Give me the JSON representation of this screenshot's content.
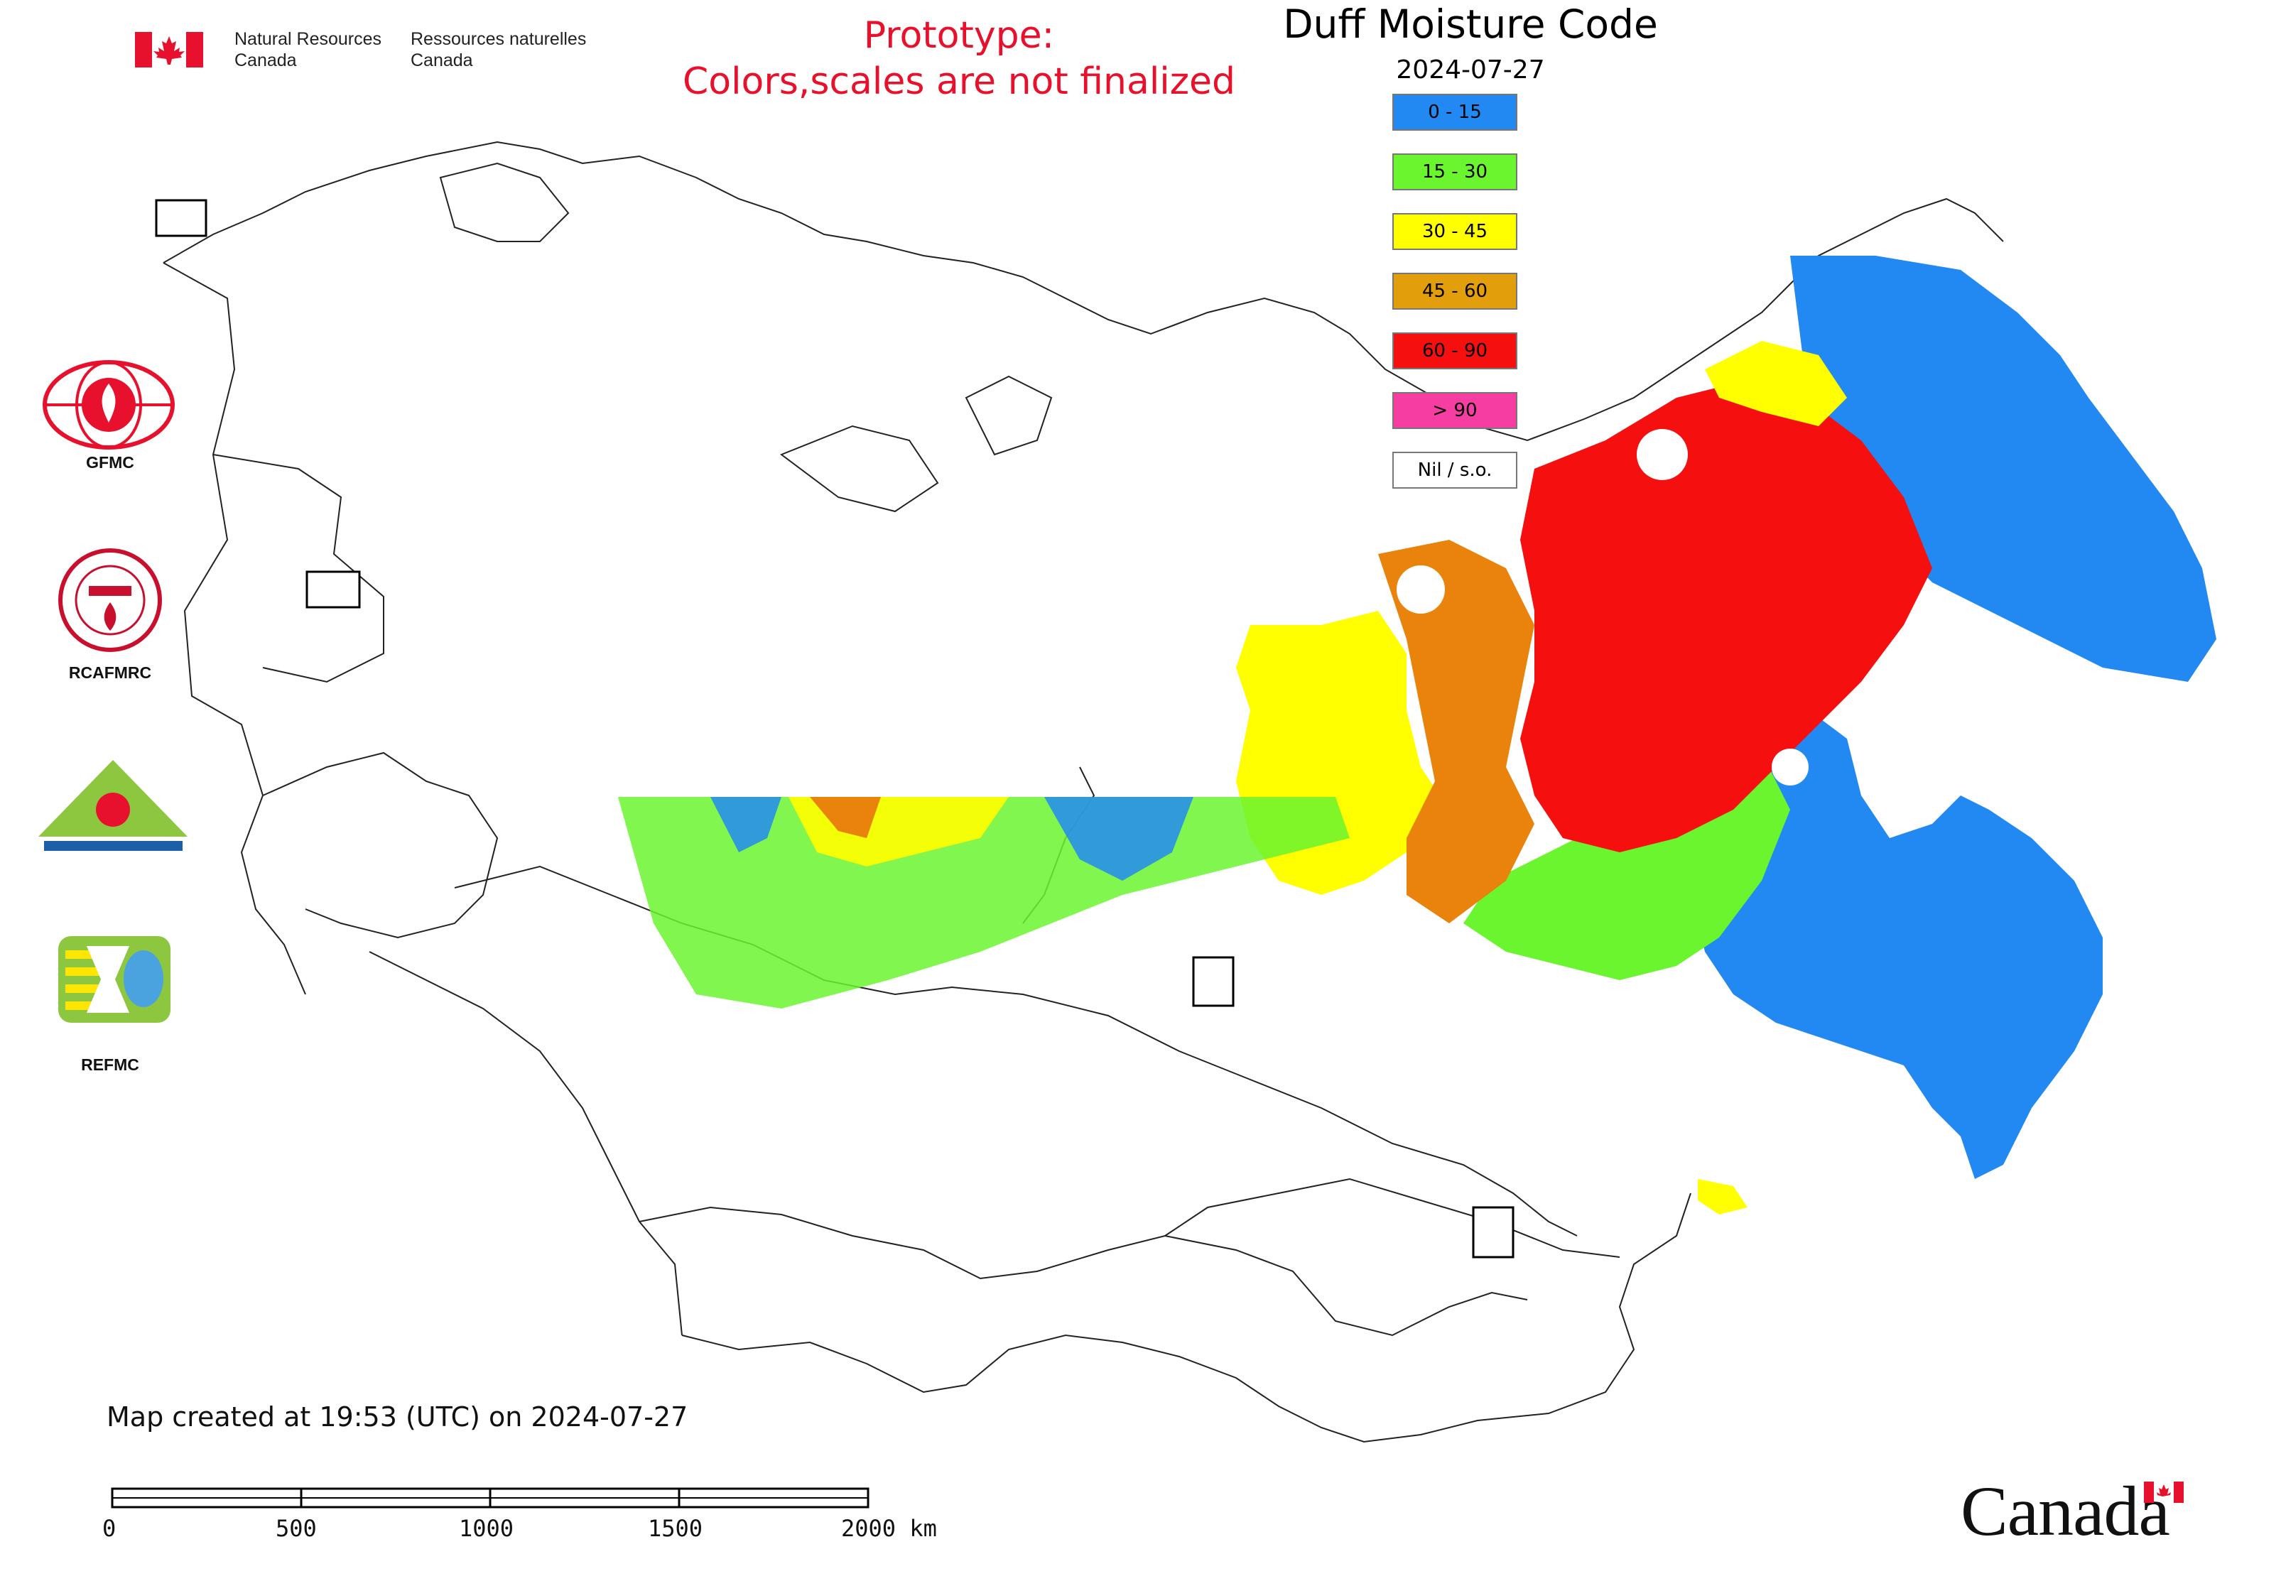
{
  "header": {
    "dept_en_line1": "Natural Resources",
    "dept_en_line2": "Canada",
    "dept_fr_line1": "Ressources naturelles",
    "dept_fr_line2": "Canada",
    "prototype_line1": "Prototype:",
    "prototype_line2": "Colors,scales are not finalized"
  },
  "map": {
    "title": "Duff Moisture Code",
    "date": "2024-07-27",
    "created_note": "Map created at 19:53 (UTC) on 2024-07-27"
  },
  "legend": [
    {
      "label": "0 - 15",
      "color": "#2389f2"
    },
    {
      "label": "15 - 30",
      "color": "#6af52f"
    },
    {
      "label": "30 - 45",
      "color": "#ffff00"
    },
    {
      "label": "45 - 60",
      "color": "#e39e0c"
    },
    {
      "label": "60 - 90",
      "color": "#f50f0f"
    },
    {
      "label": "> 90",
      "color": "#f53da2"
    },
    {
      "label": "Nil / s.o.",
      "color": "#ffffff"
    }
  ],
  "logos": [
    {
      "label": "GFMC",
      "icon": "gfmc-globe-flame-icon"
    },
    {
      "label": "RCAFMRC",
      "icon": "rcafmrc-seal-icon"
    },
    {
      "label": "",
      "icon": "reefmc-triangle-icon"
    },
    {
      "label": "REFMC",
      "icon": "refmc-sigma-icon"
    }
  ],
  "scale_bar": {
    "ticks": [
      "0",
      "500",
      "1000",
      "1500",
      "2000 km"
    ]
  },
  "wordmark": "Canada"
}
